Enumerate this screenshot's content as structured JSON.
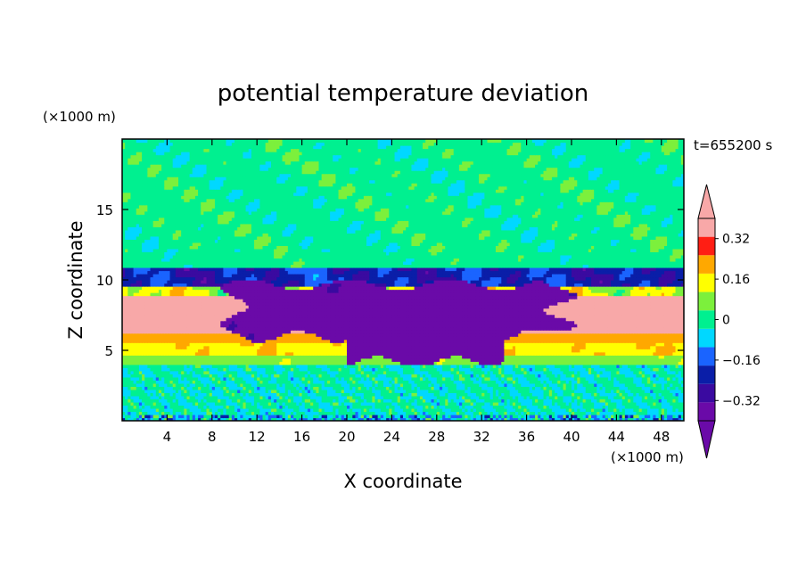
{
  "chart_data": {
    "type": "heatmap",
    "title": "potential temperature deviation",
    "time_label": "t=655200 s",
    "xlabel": "X coordinate",
    "ylabel": "Z coordinate",
    "x_unit": "(×1000 m)",
    "y_unit": "(×1000 m)",
    "xlim": [
      0,
      50
    ],
    "ylim": [
      0,
      20
    ],
    "x_ticks": [
      4,
      8,
      12,
      16,
      20,
      24,
      28,
      32,
      36,
      40,
      44,
      48
    ],
    "x_tick_labels": [
      "4",
      "8",
      "12",
      "16",
      "20",
      "24",
      "28",
      "32",
      "36",
      "40",
      "44",
      "48"
    ],
    "y_ticks": [
      5,
      10,
      15
    ],
    "y_tick_labels": [
      "5",
      "10",
      "15"
    ],
    "colorbar": {
      "levels": [
        -0.4,
        -0.32,
        -0.24,
        -0.16,
        -0.08,
        0,
        0.08,
        0.16,
        0.24,
        0.32,
        0.4
      ],
      "labeled_levels": [
        0.32,
        0.16,
        0,
        -0.16,
        -0.32
      ],
      "labels": [
        "0.32",
        "0.16",
        "0",
        "−0.16",
        "−0.32"
      ],
      "colors": [
        "#6a0aa8",
        "#3a0aa0",
        "#0a1ea8",
        "#1a64ff",
        "#00d8ff",
        "#00f090",
        "#7cf03c",
        "#ffff00",
        "#ffa800",
        "#ff1e14",
        "#f8a8a8"
      ],
      "extend": "both"
    }
  }
}
